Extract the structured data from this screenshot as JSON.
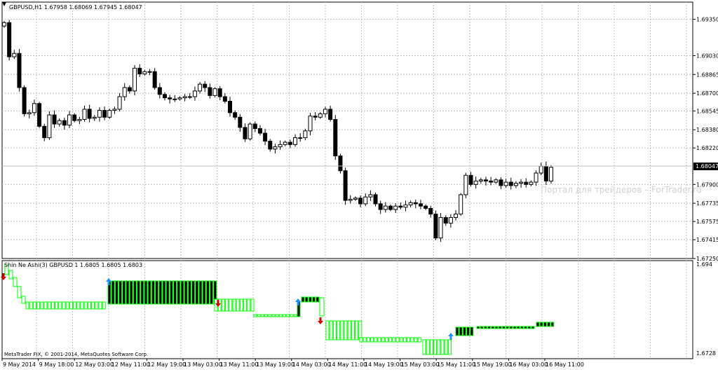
{
  "main_chart": {
    "symbol_line": "GBPUSD,H1  1.67958 1.68069 1.67945 1.68047",
    "watermark": "Портал для трейдеров – ForTrader.ru",
    "current_price": "1.68047",
    "price_labels": [
      "1.69350",
      "1.69030",
      "1.68865",
      "1.68700",
      "1.68545",
      "1.68380",
      "1.68220",
      "1.67900",
      "1.67735",
      "1.67575",
      "1.67415",
      "1.67250"
    ],
    "menu_icon": "triangle-down-icon",
    "bar_up_color": "#ffffff",
    "bar_down_color": "#000000",
    "grid_color": "#c0c0c0",
    "chart_data": {
      "type": "candlestick",
      "symbol": "GBPUSD",
      "timeframe": "H1",
      "ohlc_last": {
        "open": 1.67958,
        "high": 1.68069,
        "low": 1.67945,
        "close": 1.68047
      },
      "price_axis": [
        1.6725,
        1.6935
      ],
      "x_ticks": [
        "9 May 2014",
        "9 May 18:00",
        "12 May 03:00",
        "12 May 11:00",
        "12 May 19:00",
        "13 May 03:00",
        "13 May 11:00",
        "13 May 19:00",
        "14 May 03:00",
        "14 May 11:00",
        "14 May 19:00",
        "15 May 03:00",
        "15 May 11:00",
        "15 May 19:00",
        "16 May 03:00",
        "16 May 11:00"
      ],
      "close": [
        1.6932,
        1.6902,
        1.6905,
        1.6875,
        1.6852,
        1.6853,
        1.6861,
        1.6841,
        1.6831,
        1.6851,
        1.6843,
        1.6846,
        1.6842,
        1.6851,
        1.6846,
        1.6847,
        1.6856,
        1.6848,
        1.6849,
        1.6855,
        1.6849,
        1.6855,
        1.6856,
        1.6867,
        1.6875,
        1.6872,
        1.6892,
        1.6887,
        1.6889,
        1.6889,
        1.6875,
        1.6869,
        1.6866,
        1.6865,
        1.6865,
        1.6866,
        1.6867,
        1.6867,
        1.6872,
        1.6878,
        1.6875,
        1.6868,
        1.6874,
        1.6867,
        1.6863,
        1.6853,
        1.6849,
        1.684,
        1.683,
        1.6843,
        1.6839,
        1.6835,
        1.6828,
        1.6821,
        1.6823,
        1.6825,
        1.6827,
        1.6825,
        1.6831,
        1.6831,
        1.6837,
        1.685,
        1.6849,
        1.6852,
        1.6856,
        1.6847,
        1.6815,
        1.6802,
        1.6776,
        1.6777,
        1.6778,
        1.6773,
        1.6779,
        1.6781,
        1.6773,
        1.6768,
        1.6771,
        1.6768,
        1.6771,
        1.677,
        1.6772,
        1.6774,
        1.6773,
        1.6771,
        1.6769,
        1.6764,
        1.6743,
        1.6761,
        1.6756,
        1.6761,
        1.6764,
        1.6781,
        1.6798,
        1.679,
        1.6793,
        1.6794,
        1.6793,
        1.6792,
        1.6794,
        1.6789,
        1.6792,
        1.6789,
        1.6791,
        1.6792,
        1.679,
        1.6792,
        1.68,
        1.6806,
        1.6793,
        1.6805
      ],
      "indicator": {
        "title": "Shin Ne Ashi(3) GBPUSD 1 1.6805 1.6805 1.6803",
        "axis": [
          "1.694",
          "1.6728"
        ]
      }
    }
  },
  "indicator_panel": {
    "title": "Shin Ne Ashi(3) GBPUSD 1 1.6805 1.6805 1.6803",
    "top_value": "1.694",
    "bottom_value": "1.6728",
    "up_line_color": "#00ff00",
    "dn_fill_color": "#000000",
    "up_arrow_color": "#1e90ff",
    "dn_arrow_color": "#cc0000"
  },
  "footer": {
    "copyright": "MetaTrader FIX, © 2001-2014, MetaQuotes Software Corp."
  },
  "time_axis": {
    "labels": [
      "9 May 2014",
      "9 May 18:00",
      "12 May 03:00",
      "12 May 11:00",
      "12 May 19:00",
      "13 May 03:00",
      "13 May 11:00",
      "13 May 19:00",
      "14 May 03:00",
      "14 May 11:00",
      "14 May 19:00",
      "15 May 03:00",
      "15 May 11:00",
      "15 May 19:00",
      "16 May 03:00",
      "16 May 11:00"
    ]
  }
}
